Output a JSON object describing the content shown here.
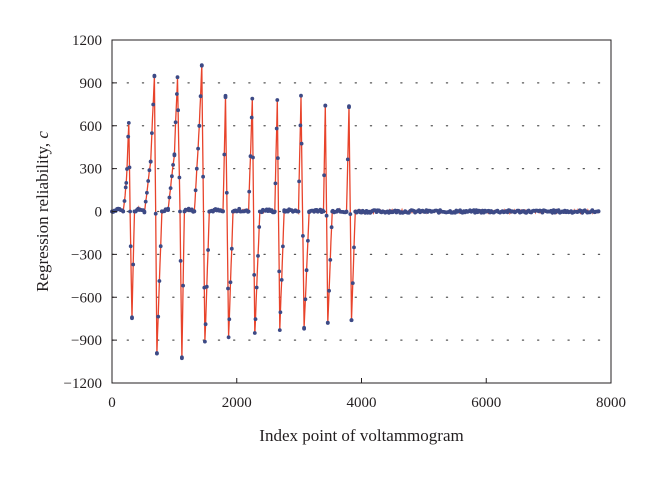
{
  "chart_data": {
    "type": "line",
    "title": "",
    "xlabel": "Index point of voltammogram",
    "ylabel_main": "Regression reliability, ",
    "ylabel_symbol": "c",
    "xlim": [
      0,
      8000
    ],
    "ylim": [
      -1200,
      1200
    ],
    "x_ticks": [
      0,
      2000,
      4000,
      6000,
      8000
    ],
    "y_ticks": [
      -1200,
      -900,
      -600,
      -300,
      0,
      300,
      600,
      900,
      1200
    ],
    "x_tick_labels": [
      "0",
      "2000",
      "4000",
      "6000",
      "8000"
    ],
    "y_tick_labels": [
      "−1200",
      "−900",
      "−600",
      "−300",
      "0",
      "300",
      "600",
      "900",
      "1200"
    ],
    "grid": "horizontal dotted",
    "legend": "none",
    "series": [
      {
        "style": "red line with dark blue circular markers",
        "x": [
          0,
          100,
          180,
          230,
          270,
          290,
          320,
          360,
          420,
          520,
          620,
          680,
          720,
          800,
          900,
          1000,
          1050,
          1090,
          1120,
          1160,
          1230,
          1320,
          1400,
          1440,
          1490,
          1560,
          1650,
          1780,
          1820,
          1870,
          1940,
          2040,
          2190,
          2250,
          2290,
          2370,
          2480,
          2610,
          2650,
          2690,
          2760,
          2850,
          2990,
          3030,
          3080,
          3160,
          3260,
          3390,
          3420,
          3460,
          3530,
          3620,
          3760,
          3800,
          3840,
          3900,
          3950,
          4000,
          5000,
          6000,
          7000,
          7800
        ],
        "y": [
          0,
          20,
          0,
          200,
          620,
          0,
          -740,
          0,
          20,
          0,
          350,
          950,
          -990,
          0,
          20,
          400,
          940,
          0,
          -1020,
          0,
          20,
          0,
          600,
          1020,
          -910,
          0,
          10,
          0,
          800,
          -880,
          0,
          10,
          0,
          790,
          -850,
          0,
          10,
          0,
          780,
          -830,
          0,
          10,
          0,
          810,
          -820,
          0,
          10,
          0,
          740,
          -780,
          0,
          10,
          0,
          730,
          -760,
          0,
          0,
          0,
          0,
          0,
          0,
          0
        ],
        "noise_band": 10
      }
    ]
  }
}
